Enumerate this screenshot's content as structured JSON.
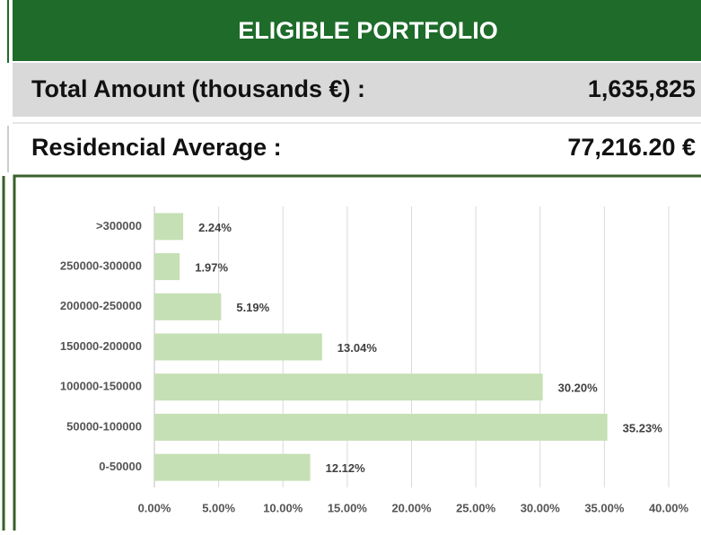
{
  "header": {
    "title": "ELIGIBLE PORTFOLIO"
  },
  "rows": [
    {
      "label": "Total Amount (thousands €) :",
      "value": "1,635,825"
    },
    {
      "label": "Residencial Average :",
      "value": "77,216.20 €"
    }
  ],
  "chart_data": {
    "type": "barh",
    "categories": [
      ">300000",
      "250000-300000",
      "200000-250000",
      "150000-200000",
      "100000-150000",
      "50000-100000",
      "0-50000"
    ],
    "values": [
      2.24,
      1.97,
      5.19,
      13.04,
      30.2,
      35.23,
      12.12
    ],
    "value_labels": [
      "2.24%",
      "1.97%",
      "5.19%",
      "13.04%",
      "30.20%",
      "35.23%",
      "12.12%"
    ],
    "color": "#c5e0b4",
    "xlim": [
      0,
      40
    ],
    "xticks": [
      {
        "value": 0,
        "label": "0.00%"
      },
      {
        "value": 5,
        "label": "5.00%"
      },
      {
        "value": 10,
        "label": "10.00%"
      },
      {
        "value": 15,
        "label": "15.00%"
      },
      {
        "value": 20,
        "label": "20.00%"
      },
      {
        "value": 25,
        "label": "25.00%"
      },
      {
        "value": 30,
        "label": "30.00%"
      },
      {
        "value": 35,
        "label": "35.00%"
      },
      {
        "value": 40,
        "label": "40.00%"
      }
    ],
    "grid": true
  }
}
